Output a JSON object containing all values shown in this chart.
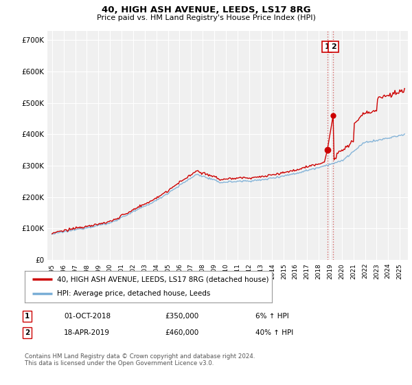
{
  "title": "40, HIGH ASH AVENUE, LEEDS, LS17 8RG",
  "subtitle": "Price paid vs. HM Land Registry's House Price Index (HPI)",
  "background_color": "#ffffff",
  "plot_bg_color": "#f0f0f0",
  "grid_color": "#ffffff",
  "hpi_color": "#7aaed6",
  "price_color": "#cc0000",
  "marker1_price": 350000,
  "marker2_price": 460000,
  "marker1_year": 2018.75,
  "marker2_year": 2019.25,
  "marker1_date_str": "01-OCT-2018",
  "marker2_date_str": "18-APR-2019",
  "marker1_pct": "6% ↑ HPI",
  "marker2_pct": "40% ↑ HPI",
  "legend_label1": "40, HIGH ASH AVENUE, LEEDS, LS17 8RG (detached house)",
  "legend_label2": "HPI: Average price, detached house, Leeds",
  "note": "Contains HM Land Registry data © Crown copyright and database right 2024.\nThis data is licensed under the Open Government Licence v3.0.",
  "ylim": [
    0,
    730000
  ],
  "yticks": [
    0,
    100000,
    200000,
    300000,
    400000,
    500000,
    600000,
    700000
  ],
  "ytick_labels": [
    "£0",
    "£100K",
    "£200K",
    "£300K",
    "£400K",
    "£500K",
    "£600K",
    "£700K"
  ],
  "xstart": 1995,
  "xend": 2025
}
